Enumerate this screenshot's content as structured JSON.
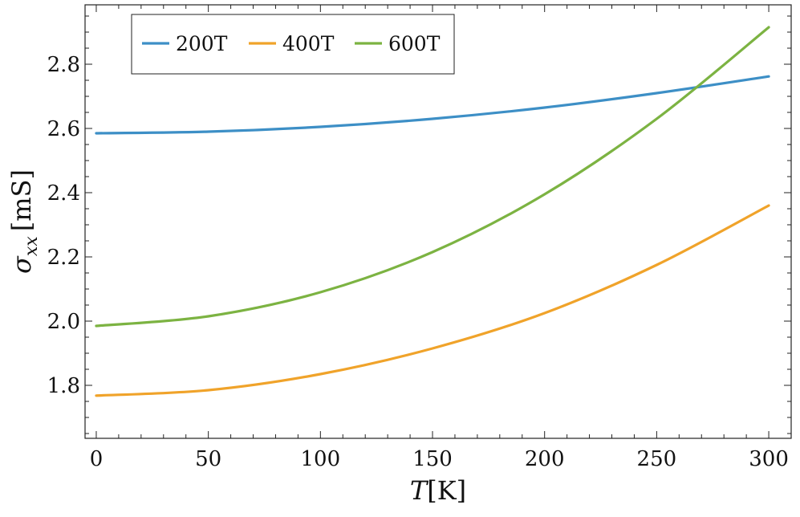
{
  "chart_data": {
    "type": "line",
    "title": "",
    "xlabel": {
      "symbol": "T",
      "unit": "[K]"
    },
    "ylabel": {
      "symbol": "σ",
      "subscript": "xx",
      "unit": "[mS]"
    },
    "xlim": [
      -5,
      310
    ],
    "ylim": [
      1.635,
      2.985
    ],
    "xticks": [
      0,
      50,
      100,
      150,
      200,
      250,
      300
    ],
    "yticks": [
      1.8,
      2.0,
      2.2,
      2.4,
      2.6,
      2.8
    ],
    "ytick_labels": [
      "1.8",
      "2.0",
      "2.2",
      "2.4",
      "2.6",
      "2.8"
    ],
    "legend_position": "top-left",
    "grid": false,
    "series": [
      {
        "name": "200T",
        "color": "#3d8fc6",
        "x": [
          0,
          50,
          100,
          150,
          200,
          250,
          300
        ],
        "y": [
          2.585,
          2.59,
          2.605,
          2.63,
          2.665,
          2.71,
          2.762
        ]
      },
      {
        "name": "400T",
        "color": "#f0a32a",
        "x": [
          0,
          50,
          100,
          150,
          200,
          250,
          300
        ],
        "y": [
          1.768,
          1.785,
          1.835,
          1.915,
          2.025,
          2.175,
          2.36
        ]
      },
      {
        "name": "600T",
        "color": "#7cb342",
        "x": [
          0,
          50,
          100,
          150,
          200,
          250,
          300
        ],
        "y": [
          1.985,
          2.015,
          2.09,
          2.215,
          2.395,
          2.63,
          2.915
        ]
      }
    ]
  }
}
